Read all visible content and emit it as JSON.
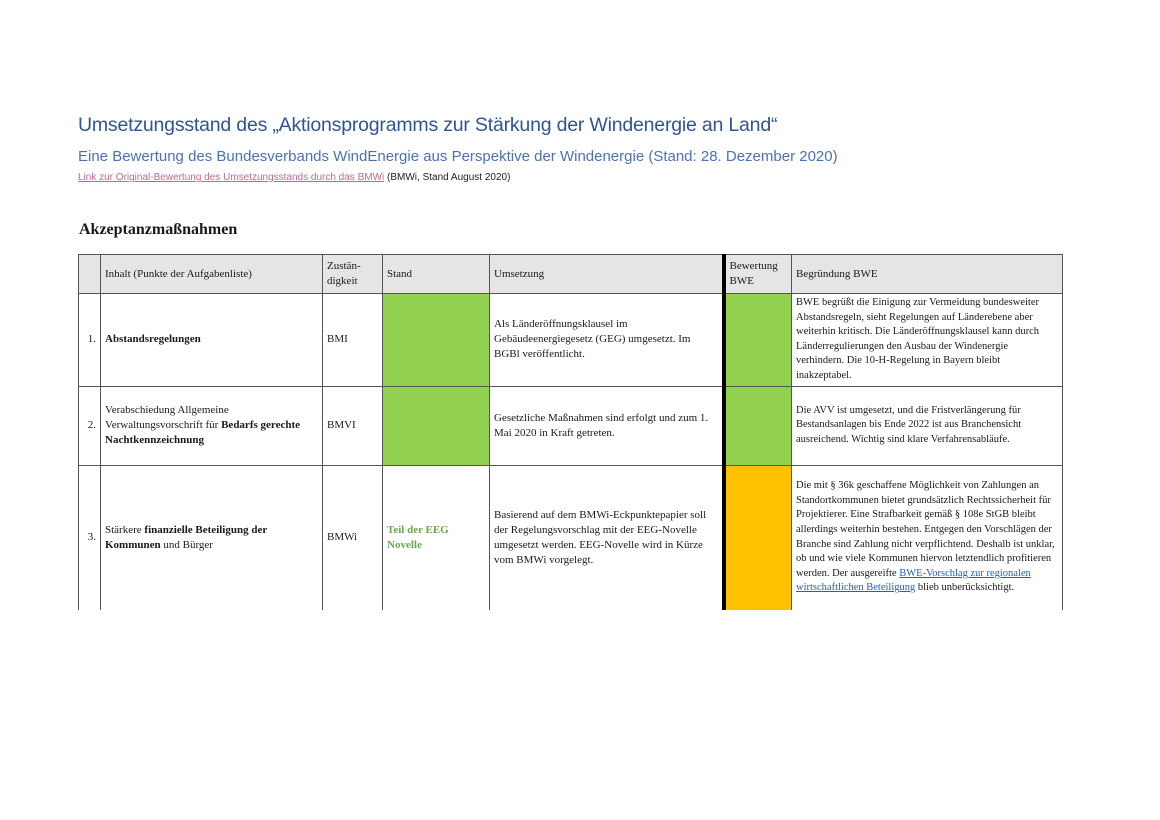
{
  "header": {
    "title": "Umsetzungsstand des „Aktionsprogramms zur Stärkung der Windenergie an Land“",
    "subtitle": "Eine Bewertung des Bundesverbands WindEnergie aus Perspektive der Windenergie (Stand: 28. Dezember 2020)",
    "link_text": "Link zur Original-Bewertung des Umsetzungsstands durch das BMWi",
    "link_suffix": " (BMWi, Stand August 2020)"
  },
  "section_title": "Akzeptanzmaßnahmen",
  "table": {
    "columns": {
      "content": "Inhalt (Punkte der Aufgabenliste)",
      "responsibility": "Zustän-digkeit",
      "status": "Stand",
      "implementation": "Umsetzung",
      "rating": "Bewertung BWE",
      "reasoning": "Begründung BWE"
    },
    "rows": [
      {
        "num": "1.",
        "content_bold": "Abstandsregelungen",
        "responsibility": "BMI",
        "status_color": "#92d050",
        "implementation": "Als Länderöffnungsklausel im Gebäudeenergiegesetz (GEG) umgesetzt. Im BGBl veröffentlicht.",
        "rating_color": "#92d050",
        "reasoning": "BWE begrüßt die Einigung zur Vermeidung bundesweiter Abstandsregeln, sieht Regelungen auf Länderebene aber weiterhin kritisch. Die Länderöffnungsklausel kann durch Länderregulierungen den Ausbau der Windenergie verhindern. Die 10-H-Regelung in Bayern bleibt inakzeptabel."
      },
      {
        "num": "2.",
        "content_pre": "Verabschiedung Allgemeine Verwaltungsvorschrift für ",
        "content_bold": "Bedarfs gerechte Nachtkennzeichnung",
        "responsibility": "BMVI",
        "status_color": "#92d050",
        "implementation": "Gesetzliche Maßnahmen sind erfolgt und zum 1. Mai 2020 in Kraft getreten.",
        "rating_color": "#92d050",
        "reasoning": "Die AVV ist umgesetzt, und die Fristverlängerung für Bestandsanlagen bis Ende 2022 ist aus Branchensicht ausreichend. Wichtig sind klare Verfahrensabläufe."
      },
      {
        "num": "3.",
        "content_pre": "Stärkere ",
        "content_bold": "finanzielle Beteiligung der Kommunen",
        "content_post": " und Bürger",
        "responsibility": "BMWi",
        "status_text": "Teil der EEG Novelle",
        "implementation": "Basierend auf dem BMWi-Eckpunktepapier soll der Regelungsvorschlag mit der EEG-Novelle umgesetzt werden. EEG-Novelle wird in Kürze vom BMWi vorgelegt.",
        "rating_color": "#ffc000",
        "reasoning_pre": "Die mit § 36k geschaffene Möglichkeit von Zahlungen an Standortkommunen bietet grundsätzlich Rechtssicherheit für Projektierer. Eine Strafbarkeit gemäß § 108e StGB bleibt allerdings weiterhin bestehen. Entgegen den Vorschlägen der Branche sind Zahlung nicht verpflichtend. Deshalb ist unklar, ob und wie viele Kommunen hiervon letztendlich profitieren werden. Der ausgereifte ",
        "reasoning_link": "BWE-Vorschlag zur regionalen wirtschaftlichen Beteiligung",
        "reasoning_post": " blieb unberücksichtigt."
      }
    ]
  }
}
